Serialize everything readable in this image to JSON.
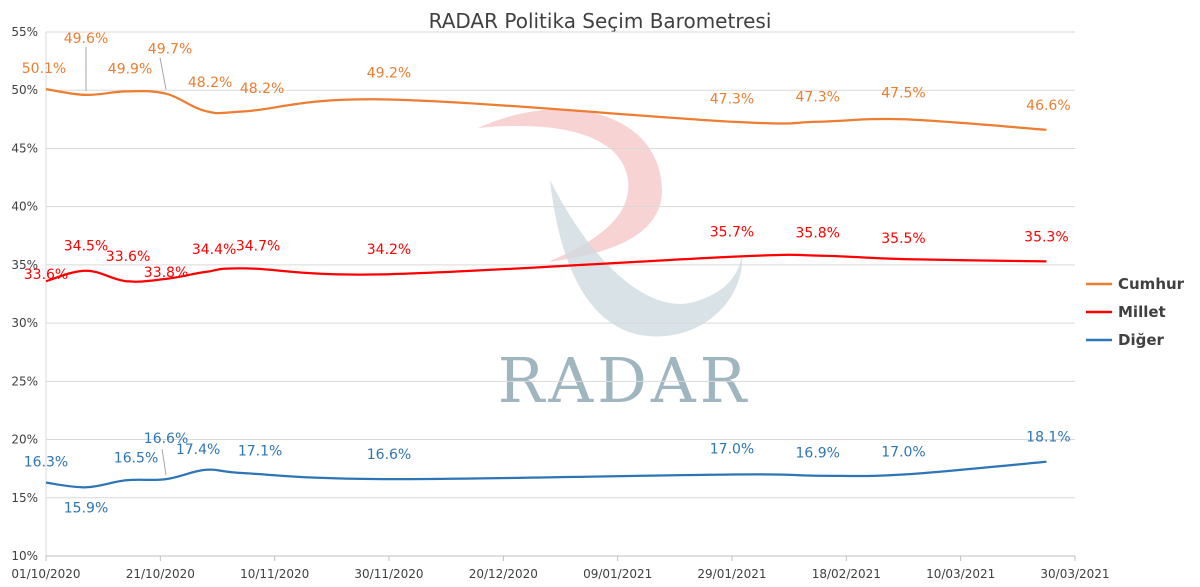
{
  "chart_data": {
    "type": "line",
    "title": "RADAR Politika Seçim Barometresi",
    "watermark": "RADAR",
    "xlabel": "",
    "ylabel": "",
    "x_ticks": [
      "01/10/2020",
      "21/10/2020",
      "10/11/2020",
      "30/11/2020",
      "20/12/2020",
      "09/01/2021",
      "29/01/2021",
      "18/02/2021",
      "10/03/2021",
      "30/03/2021"
    ],
    "y_ticks": [
      "10%",
      "15%",
      "20%",
      "25%",
      "30%",
      "35%",
      "40%",
      "45%",
      "50%",
      "55%"
    ],
    "ylim": [
      10,
      55
    ],
    "grid": true,
    "legend_position": "right",
    "x": [
      "01/10/2020",
      "08/10/2020",
      "15/10/2020",
      "22/10/2020",
      "29/10/2020",
      "05/11/2020",
      "30/11/2020",
      "29/01/2021",
      "13/02/2021",
      "28/02/2021",
      "25/03/2021"
    ],
    "series": [
      {
        "name": "Cumhur",
        "color": "#ED7D31",
        "values": [
          50.1,
          49.6,
          49.9,
          49.7,
          48.2,
          48.2,
          49.2,
          47.3,
          47.3,
          47.5,
          46.6
        ],
        "labels": [
          "50.1%",
          "49.6%",
          "49.9%",
          "49.7%",
          "48.2%",
          "48.2%",
          "49.2%",
          "47.3%",
          "47.3%",
          "47.5%",
          "46.6%"
        ]
      },
      {
        "name": "Millet",
        "color": "#FF0000",
        "values": [
          33.6,
          34.5,
          33.6,
          33.8,
          34.4,
          34.7,
          34.2,
          35.7,
          35.8,
          35.5,
          35.3
        ],
        "labels": [
          "33.6%",
          "34.5%",
          "33.6%",
          "33.8%",
          "34.4%",
          "34.7%",
          "34.2%",
          "35.7%",
          "35.8%",
          "35.5%",
          "35.3%"
        ]
      },
      {
        "name": "Diğer",
        "color": "#2E75B6",
        "values": [
          16.3,
          15.9,
          16.5,
          16.6,
          17.4,
          17.1,
          16.6,
          17.0,
          16.9,
          17.0,
          18.1
        ],
        "labels": [
          "16.3%",
          "15.9%",
          "16.5%",
          "16.6%",
          "17.4%",
          "17.1%",
          "16.6%",
          "17.0%",
          "16.9%",
          "17.0%",
          "18.1%"
        ]
      }
    ]
  }
}
